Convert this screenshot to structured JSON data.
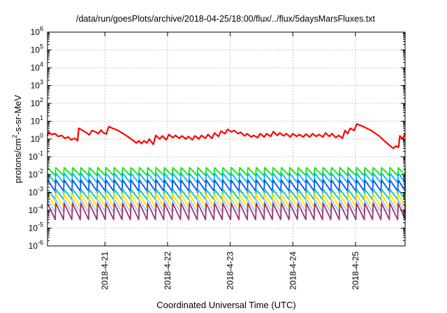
{
  "chart_data": {
    "type": "line",
    "title": "/data/run/goesPlots/archive/2018-04-25/18:00/flux/../flux/5daysMarsFluxes.txt",
    "xlabel": "Coordinated Universal Time (UTC)",
    "ylabel": "protons/cm²-s-sr-MeV",
    "ylabel_parts": {
      "base": "protons/cm",
      "sup": "2",
      "rest": "-s-sr-MeV"
    },
    "y_scale": "log",
    "ylim": [
      1e-06,
      1000000.0
    ],
    "y_ticks": [
      {
        "value": 1e-06,
        "base": "10",
        "exp": "-6"
      },
      {
        "value": 1e-05,
        "base": "10",
        "exp": "-5"
      },
      {
        "value": 0.0001,
        "base": "10",
        "exp": "-4"
      },
      {
        "value": 0.001,
        "base": "10",
        "exp": "-3"
      },
      {
        "value": 0.01,
        "base": "10",
        "exp": "-2"
      },
      {
        "value": 0.1,
        "base": "10",
        "exp": "-1"
      },
      {
        "value": 1,
        "base": "10",
        "exp": "0"
      },
      {
        "value": 10,
        "base": "10",
        "exp": "1"
      },
      {
        "value": 100,
        "base": "10",
        "exp": "2"
      },
      {
        "value": 1000,
        "base": "10",
        "exp": "3"
      },
      {
        "value": 10000,
        "base": "10",
        "exp": "4"
      },
      {
        "value": 100000,
        "base": "10",
        "exp": "5"
      },
      {
        "value": 1000000,
        "base": "10",
        "exp": "6"
      }
    ],
    "xlim": [
      "2018-04-20 02:00",
      "2018-04-25 19:00"
    ],
    "x_ticks": [
      {
        "value": "2018-04-21 00:00",
        "label": "2018-4-21"
      },
      {
        "value": "2018-04-22 00:00",
        "label": "2018-4-22"
      },
      {
        "value": "2018-04-23 00:00",
        "label": "2018-4-23"
      },
      {
        "value": "2018-04-24 00:00",
        "label": "2018-4-24"
      },
      {
        "value": "2018-04-25 00:00",
        "label": "2018-4-25"
      }
    ],
    "grid": true,
    "legend": "none",
    "series": [
      {
        "color": "#ff0000",
        "points": [
          [
            "2018-04-20 02:00",
            1.5
          ],
          [
            "2018-04-20 02:30",
            2.5
          ],
          [
            "2018-04-20 03:30",
            1.8
          ],
          [
            "2018-04-20 05:00",
            2.0
          ],
          [
            "2018-04-20 06:00",
            1.4
          ],
          [
            "2018-04-20 07:30",
            1.6
          ],
          [
            "2018-04-20 08:30",
            1.1
          ],
          [
            "2018-04-20 10:00",
            1.3
          ],
          [
            "2018-04-20 11:00",
            0.9
          ],
          [
            "2018-04-20 12:30",
            1.1
          ],
          [
            "2018-04-20 13:30",
            0.8
          ],
          [
            "2018-04-20 14:00",
            4.0
          ],
          [
            "2018-04-20 15:30",
            3.0
          ],
          [
            "2018-04-20 17:00",
            2.2
          ],
          [
            "2018-04-20 18:00",
            1.7
          ],
          [
            "2018-04-20 19:00",
            3.0
          ],
          [
            "2018-04-20 20:30",
            2.5
          ],
          [
            "2018-04-20 21:30",
            2.0
          ],
          [
            "2018-04-20 22:30",
            3.2
          ],
          [
            "2018-04-20 23:30",
            2.2
          ],
          [
            "2018-04-21 00:30",
            1.9
          ],
          [
            "2018-04-21 01:30",
            5.0
          ],
          [
            "2018-04-21 03:00",
            4.0
          ],
          [
            "2018-04-21 05:00",
            3.0
          ],
          [
            "2018-04-21 07:00",
            2.0
          ],
          [
            "2018-04-21 09:00",
            1.3
          ],
          [
            "2018-04-21 11:00",
            0.8
          ],
          [
            "2018-04-21 12:00",
            0.6
          ],
          [
            "2018-04-21 13:00",
            0.8
          ],
          [
            "2018-04-21 14:00",
            0.55
          ],
          [
            "2018-04-21 15:00",
            0.8
          ],
          [
            "2018-04-21 16:00",
            0.6
          ],
          [
            "2018-04-21 17:00",
            1.0
          ],
          [
            "2018-04-21 18:30",
            0.5
          ],
          [
            "2018-04-21 19:30",
            1.6
          ],
          [
            "2018-04-21 21:00",
            1.0
          ],
          [
            "2018-04-21 22:00",
            1.5
          ],
          [
            "2018-04-21 23:30",
            0.9
          ],
          [
            "2018-04-22 00:30",
            1.8
          ],
          [
            "2018-04-22 02:00",
            1.2
          ],
          [
            "2018-04-22 03:00",
            1.6
          ],
          [
            "2018-04-22 04:30",
            1.1
          ],
          [
            "2018-04-22 05:30",
            1.5
          ],
          [
            "2018-04-22 07:00",
            1.0
          ],
          [
            "2018-04-22 08:00",
            1.4
          ],
          [
            "2018-04-22 09:30",
            0.9
          ],
          [
            "2018-04-22 10:30",
            1.5
          ],
          [
            "2018-04-22 12:00",
            1.0
          ],
          [
            "2018-04-22 13:00",
            1.6
          ],
          [
            "2018-04-22 14:30",
            1.1
          ],
          [
            "2018-04-22 15:30",
            1.8
          ],
          [
            "2018-04-22 17:00",
            1.1
          ],
          [
            "2018-04-22 18:00",
            2.2
          ],
          [
            "2018-04-22 19:30",
            1.4
          ],
          [
            "2018-04-22 20:30",
            2.8
          ],
          [
            "2018-04-22 22:00",
            2.0
          ],
          [
            "2018-04-22 23:00",
            3.5
          ],
          [
            "2018-04-23 00:30",
            2.5
          ],
          [
            "2018-04-23 01:30",
            3.0
          ],
          [
            "2018-04-23 03:00",
            2.0
          ],
          [
            "2018-04-23 04:00",
            2.4
          ],
          [
            "2018-04-23 05:30",
            1.5
          ],
          [
            "2018-04-23 06:30",
            2.0
          ],
          [
            "2018-04-23 08:00",
            1.3
          ],
          [
            "2018-04-23 09:00",
            1.6
          ],
          [
            "2018-04-23 10:30",
            1.2
          ],
          [
            "2018-04-23 11:30",
            2.0
          ],
          [
            "2018-04-23 13:00",
            1.3
          ],
          [
            "2018-04-23 14:00",
            2.0
          ],
          [
            "2018-04-23 15:30",
            1.4
          ],
          [
            "2018-04-23 16:30",
            2.6
          ],
          [
            "2018-04-23 18:00",
            1.6
          ],
          [
            "2018-04-23 19:00",
            2.2
          ],
          [
            "2018-04-23 20:30",
            1.5
          ],
          [
            "2018-04-23 21:30",
            2.0
          ],
          [
            "2018-04-23 23:00",
            1.3
          ],
          [
            "2018-04-24 00:00",
            2.0
          ],
          [
            "2018-04-24 01:30",
            1.4
          ],
          [
            "2018-04-24 02:30",
            1.8
          ],
          [
            "2018-04-24 04:00",
            1.3
          ],
          [
            "2018-04-24 05:00",
            1.9
          ],
          [
            "2018-04-24 06:30",
            1.3
          ],
          [
            "2018-04-24 07:30",
            2.0
          ],
          [
            "2018-04-24 09:00",
            1.4
          ],
          [
            "2018-04-24 10:00",
            1.8
          ],
          [
            "2018-04-24 11:30",
            1.3
          ],
          [
            "2018-04-24 12:30",
            2.2
          ],
          [
            "2018-04-24 14:00",
            1.4
          ],
          [
            "2018-04-24 15:00",
            2.0
          ],
          [
            "2018-04-24 16:30",
            1.2
          ],
          [
            "2018-04-24 17:30",
            1.6
          ],
          [
            "2018-04-24 19:00",
            1.1
          ],
          [
            "2018-04-24 20:00",
            3.0
          ],
          [
            "2018-04-24 21:00",
            2.0
          ],
          [
            "2018-04-24 22:00",
            4.0
          ],
          [
            "2018-04-24 23:30",
            3.0
          ],
          [
            "2018-04-25 00:30",
            7.0
          ],
          [
            "2018-04-25 03:00",
            5.0
          ],
          [
            "2018-04-25 06:00",
            3.0
          ],
          [
            "2018-04-25 09:00",
            1.5
          ],
          [
            "2018-04-25 11:00",
            0.8
          ],
          [
            "2018-04-25 13:00",
            0.45
          ],
          [
            "2018-04-25 14:30",
            0.3
          ],
          [
            "2018-04-25 15:30",
            0.4
          ],
          [
            "2018-04-25 16:30",
            0.35
          ],
          [
            "2018-04-25 17:00",
            1.5
          ],
          [
            "2018-04-25 18:00",
            1.0
          ],
          [
            "2018-04-25 19:00",
            2.0
          ]
        ]
      },
      {
        "color": "#00ee00",
        "profile": "sawtooth",
        "cycles": 44,
        "period_hours": 3.2,
        "peak": 0.025,
        "trough": 0.009
      },
      {
        "color": "#00b4ff",
        "profile": "sawtooth",
        "cycles": 44,
        "period_hours": 3.2,
        "peak": 0.012,
        "trough": 0.0035
      },
      {
        "color": "#0050ff",
        "profile": "sawtooth",
        "cycles": 44,
        "period_hours": 3.2,
        "peak": 0.005,
        "trough": 0.0012
      },
      {
        "color": "#00c8b4",
        "profile": "sawtooth",
        "cycles": 44,
        "period_hours": 3.2,
        "peak": 0.0015,
        "trough": 0.0004
      },
      {
        "color": "#ffe600",
        "profile": "sawtooth",
        "cycles": 44,
        "period_hours": 3.2,
        "peak": 0.0008,
        "trough": 0.00015
      },
      {
        "color": "#a0c8ff",
        "profile": "sawtooth",
        "cycles": 44,
        "period_hours": 3.2,
        "peak": 0.0004,
        "trough": 8e-05
      },
      {
        "color": "#a03070",
        "profile": "sawtooth",
        "cycles": 44,
        "period_hours": 3.2,
        "peak": 0.00025,
        "trough": 3e-05
      }
    ]
  }
}
